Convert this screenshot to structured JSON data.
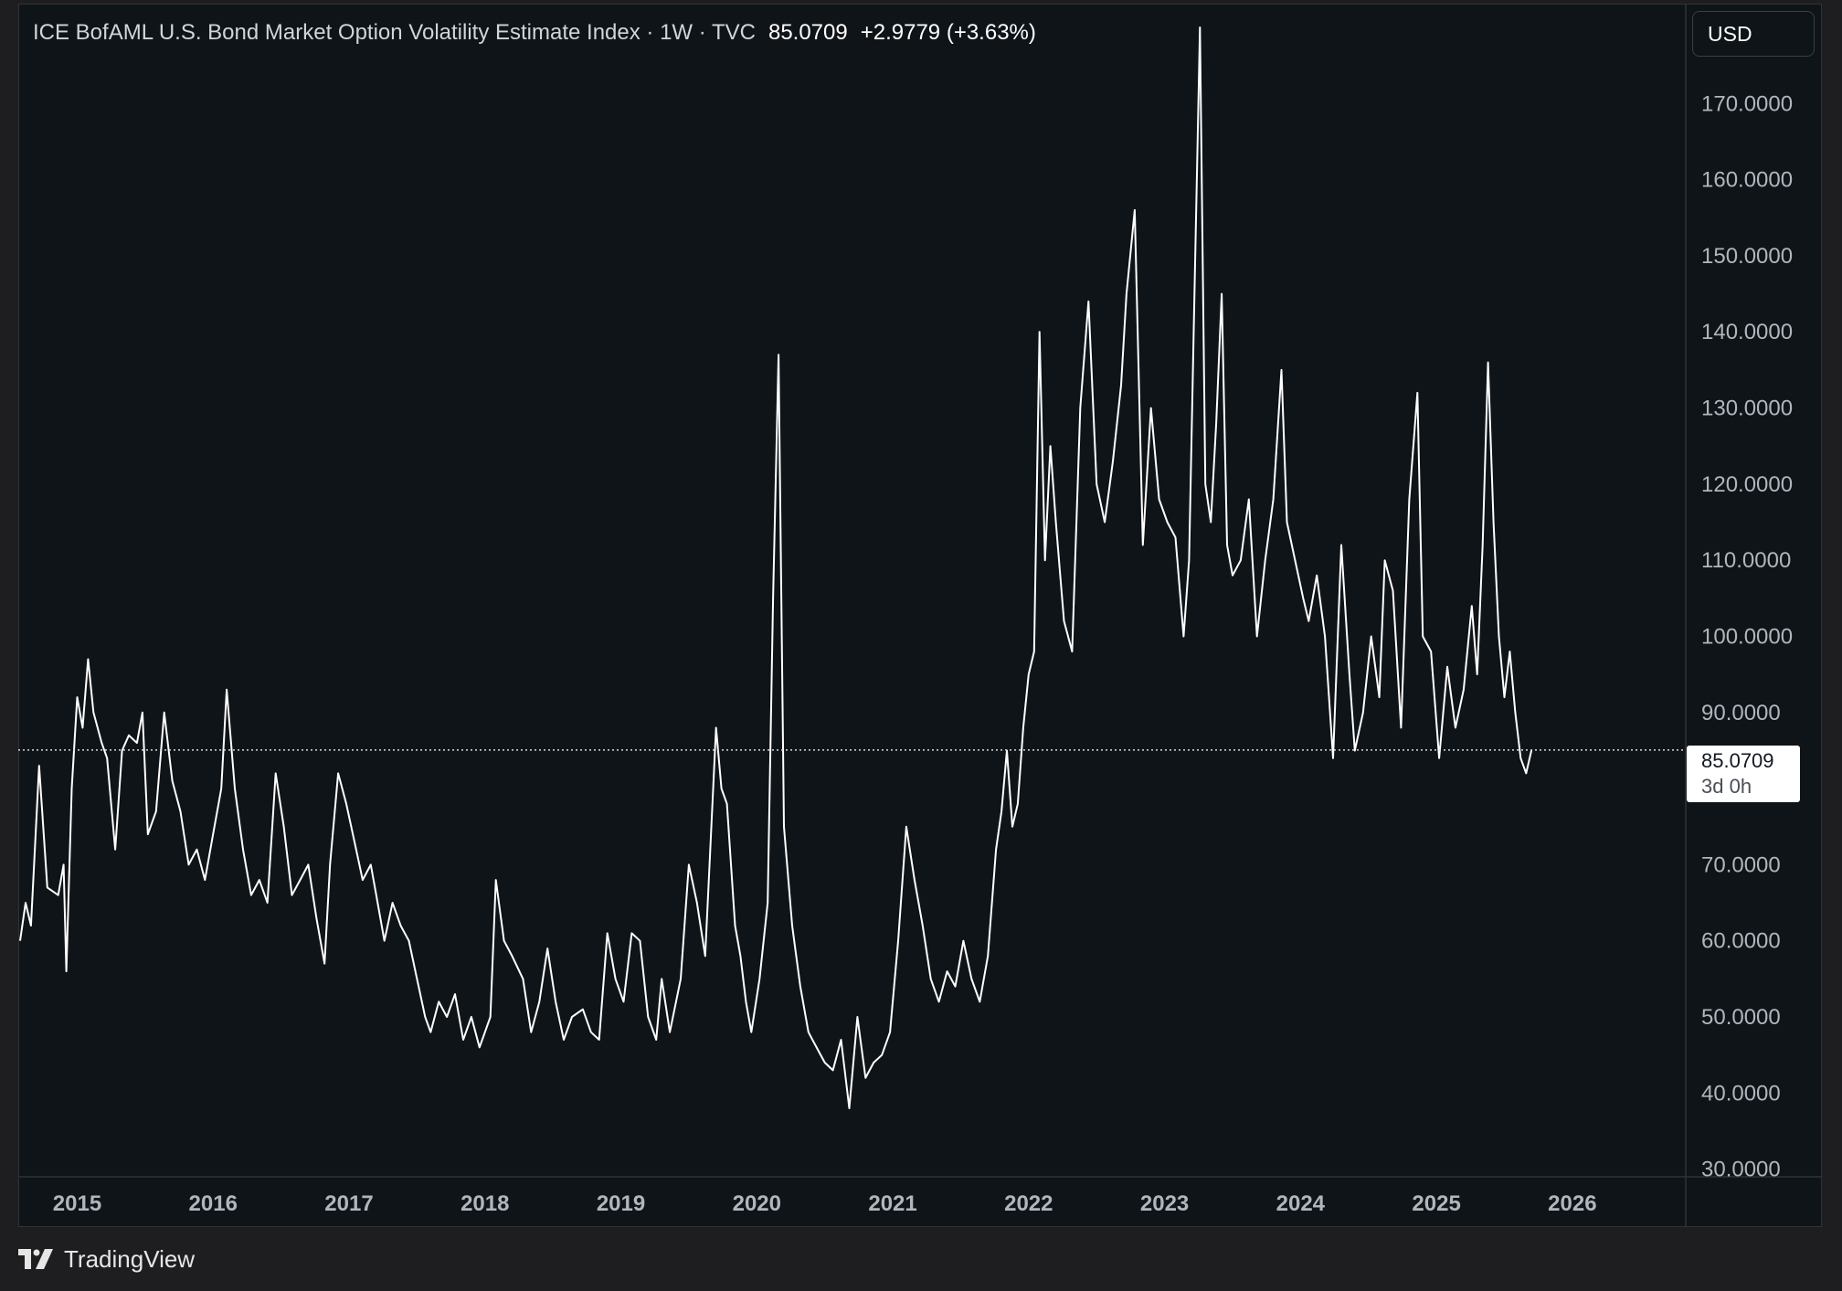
{
  "header": {
    "symbol_line": "ICE BofAML U.S. Bond Market Option Volatility Estimate Index · 1W · TVC",
    "last_value": "85.0709",
    "change": "+2.9779 (+3.63%)"
  },
  "currency_button": {
    "label": "USD"
  },
  "price_tag": {
    "value": "85.0709",
    "countdown": "3d 0h"
  },
  "brand": {
    "name": "TradingView"
  },
  "colors": {
    "background": "#0f1418",
    "line": "#ffffff",
    "text": "#b2b5be",
    "page": "#1e1e20"
  },
  "chart_data": {
    "type": "line",
    "title": "ICE BofAML U.S. Bond Market Option Volatility Estimate Index",
    "interval": "1W",
    "source": "TVC",
    "ylim": [
      29,
      183
    ],
    "xlim": [
      2014.58,
      2026.7
    ],
    "y_ticks": [
      "170.0000",
      "160.0000",
      "150.0000",
      "140.0000",
      "130.0000",
      "120.0000",
      "110.0000",
      "100.0000",
      "90.0000",
      "70.0000",
      "60.0000",
      "50.0000",
      "40.0000",
      "30.0000"
    ],
    "x_ticks": [
      "2015",
      "2016",
      "2017",
      "2018",
      "2019",
      "2020",
      "2021",
      "2022",
      "2023",
      "2024",
      "2025",
      "2026"
    ],
    "last_price_line": 85.07,
    "grid": false,
    "series": [
      {
        "points": [
          [
            2014.58,
            60
          ],
          [
            2014.62,
            65
          ],
          [
            2014.66,
            62
          ],
          [
            2014.72,
            83
          ],
          [
            2014.78,
            67
          ],
          [
            2014.86,
            66
          ],
          [
            2014.9,
            70
          ],
          [
            2014.92,
            56
          ],
          [
            2014.96,
            80
          ],
          [
            2015.0,
            92
          ],
          [
            2015.04,
            88
          ],
          [
            2015.08,
            97
          ],
          [
            2015.12,
            90
          ],
          [
            2015.18,
            86
          ],
          [
            2015.22,
            84
          ],
          [
            2015.28,
            72
          ],
          [
            2015.33,
            85
          ],
          [
            2015.38,
            87
          ],
          [
            2015.44,
            86
          ],
          [
            2015.48,
            90
          ],
          [
            2015.52,
            74
          ],
          [
            2015.58,
            77
          ],
          [
            2015.64,
            90
          ],
          [
            2015.7,
            81
          ],
          [
            2015.76,
            77
          ],
          [
            2015.82,
            70
          ],
          [
            2015.88,
            72
          ],
          [
            2015.94,
            68
          ],
          [
            2016.0,
            74
          ],
          [
            2016.06,
            80
          ],
          [
            2016.1,
            93
          ],
          [
            2016.16,
            80
          ],
          [
            2016.22,
            72
          ],
          [
            2016.28,
            66
          ],
          [
            2016.34,
            68
          ],
          [
            2016.4,
            65
          ],
          [
            2016.46,
            82
          ],
          [
            2016.52,
            75
          ],
          [
            2016.58,
            66
          ],
          [
            2016.64,
            68
          ],
          [
            2016.7,
            70
          ],
          [
            2016.76,
            63
          ],
          [
            2016.82,
            57
          ],
          [
            2016.86,
            70
          ],
          [
            2016.92,
            82
          ],
          [
            2016.98,
            78
          ],
          [
            2017.04,
            73
          ],
          [
            2017.1,
            68
          ],
          [
            2017.16,
            70
          ],
          [
            2017.2,
            66
          ],
          [
            2017.26,
            60
          ],
          [
            2017.32,
            65
          ],
          [
            2017.38,
            62
          ],
          [
            2017.44,
            60
          ],
          [
            2017.5,
            55
          ],
          [
            2017.56,
            50
          ],
          [
            2017.6,
            48
          ],
          [
            2017.66,
            52
          ],
          [
            2017.72,
            50
          ],
          [
            2017.78,
            53
          ],
          [
            2017.84,
            47
          ],
          [
            2017.9,
            50
          ],
          [
            2017.96,
            46
          ],
          [
            2018.04,
            50
          ],
          [
            2018.08,
            68
          ],
          [
            2018.14,
            60
          ],
          [
            2018.2,
            58
          ],
          [
            2018.28,
            55
          ],
          [
            2018.34,
            48
          ],
          [
            2018.4,
            52
          ],
          [
            2018.46,
            59
          ],
          [
            2018.52,
            52
          ],
          [
            2018.58,
            47
          ],
          [
            2018.64,
            50
          ],
          [
            2018.72,
            51
          ],
          [
            2018.78,
            48
          ],
          [
            2018.84,
            47
          ],
          [
            2018.9,
            61
          ],
          [
            2018.96,
            55
          ],
          [
            2019.02,
            52
          ],
          [
            2019.08,
            61
          ],
          [
            2019.14,
            60
          ],
          [
            2019.2,
            50
          ],
          [
            2019.26,
            47
          ],
          [
            2019.3,
            55
          ],
          [
            2019.36,
            48
          ],
          [
            2019.44,
            55
          ],
          [
            2019.5,
            70
          ],
          [
            2019.56,
            65
          ],
          [
            2019.62,
            58
          ],
          [
            2019.7,
            88
          ],
          [
            2019.74,
            80
          ],
          [
            2019.78,
            78
          ],
          [
            2019.84,
            62
          ],
          [
            2019.88,
            58
          ],
          [
            2019.92,
            52
          ],
          [
            2019.96,
            48
          ],
          [
            2020.02,
            55
          ],
          [
            2020.08,
            65
          ],
          [
            2020.12,
            105
          ],
          [
            2020.16,
            137
          ],
          [
            2020.2,
            75
          ],
          [
            2020.26,
            62
          ],
          [
            2020.32,
            54
          ],
          [
            2020.38,
            48
          ],
          [
            2020.44,
            46
          ],
          [
            2020.5,
            44
          ],
          [
            2020.56,
            43
          ],
          [
            2020.62,
            47
          ],
          [
            2020.68,
            38
          ],
          [
            2020.74,
            50
          ],
          [
            2020.8,
            42
          ],
          [
            2020.86,
            44
          ],
          [
            2020.92,
            45
          ],
          [
            2020.98,
            48
          ],
          [
            2021.04,
            60
          ],
          [
            2021.1,
            75
          ],
          [
            2021.16,
            68
          ],
          [
            2021.22,
            62
          ],
          [
            2021.28,
            55
          ],
          [
            2021.34,
            52
          ],
          [
            2021.4,
            56
          ],
          [
            2021.46,
            54
          ],
          [
            2021.52,
            60
          ],
          [
            2021.58,
            55
          ],
          [
            2021.64,
            52
          ],
          [
            2021.7,
            58
          ],
          [
            2021.76,
            72
          ],
          [
            2021.8,
            77
          ],
          [
            2021.84,
            85
          ],
          [
            2021.88,
            75
          ],
          [
            2021.92,
            78
          ],
          [
            2021.96,
            88
          ],
          [
            2022.0,
            95
          ],
          [
            2022.04,
            98
          ],
          [
            2022.08,
            140
          ],
          [
            2022.12,
            110
          ],
          [
            2022.16,
            125
          ],
          [
            2022.2,
            115
          ],
          [
            2022.26,
            102
          ],
          [
            2022.32,
            98
          ],
          [
            2022.38,
            130
          ],
          [
            2022.44,
            144
          ],
          [
            2022.5,
            120
          ],
          [
            2022.56,
            115
          ],
          [
            2022.62,
            123
          ],
          [
            2022.68,
            133
          ],
          [
            2022.72,
            145
          ],
          [
            2022.78,
            156
          ],
          [
            2022.84,
            112
          ],
          [
            2022.9,
            130
          ],
          [
            2022.96,
            118
          ],
          [
            2023.02,
            115
          ],
          [
            2023.08,
            113
          ],
          [
            2023.14,
            100
          ],
          [
            2023.18,
            110
          ],
          [
            2023.22,
            145
          ],
          [
            2023.26,
            180
          ],
          [
            2023.3,
            120
          ],
          [
            2023.34,
            115
          ],
          [
            2023.38,
            128
          ],
          [
            2023.42,
            145
          ],
          [
            2023.46,
            112
          ],
          [
            2023.5,
            108
          ],
          [
            2023.56,
            110
          ],
          [
            2023.62,
            118
          ],
          [
            2023.68,
            100
          ],
          [
            2023.74,
            110
          ],
          [
            2023.8,
            118
          ],
          [
            2023.86,
            135
          ],
          [
            2023.9,
            115
          ],
          [
            2023.96,
            110
          ],
          [
            2024.02,
            105
          ],
          [
            2024.06,
            102
          ],
          [
            2024.12,
            108
          ],
          [
            2024.18,
            100
          ],
          [
            2024.24,
            84
          ],
          [
            2024.3,
            112
          ],
          [
            2024.36,
            95
          ],
          [
            2024.4,
            85
          ],
          [
            2024.46,
            90
          ],
          [
            2024.52,
            100
          ],
          [
            2024.58,
            92
          ],
          [
            2024.62,
            110
          ],
          [
            2024.68,
            106
          ],
          [
            2024.74,
            88
          ],
          [
            2024.8,
            118
          ],
          [
            2024.86,
            132
          ],
          [
            2024.9,
            100
          ],
          [
            2024.96,
            98
          ],
          [
            2025.02,
            84
          ],
          [
            2025.08,
            96
          ],
          [
            2025.14,
            88
          ],
          [
            2025.2,
            93
          ],
          [
            2025.26,
            104
          ],
          [
            2025.3,
            95
          ],
          [
            2025.34,
            112
          ],
          [
            2025.38,
            136
          ],
          [
            2025.42,
            115
          ],
          [
            2025.46,
            100
          ],
          [
            2025.5,
            92
          ],
          [
            2025.54,
            98
          ],
          [
            2025.58,
            90
          ],
          [
            2025.62,
            84
          ],
          [
            2025.66,
            82
          ],
          [
            2025.7,
            85.07
          ]
        ]
      }
    ]
  }
}
